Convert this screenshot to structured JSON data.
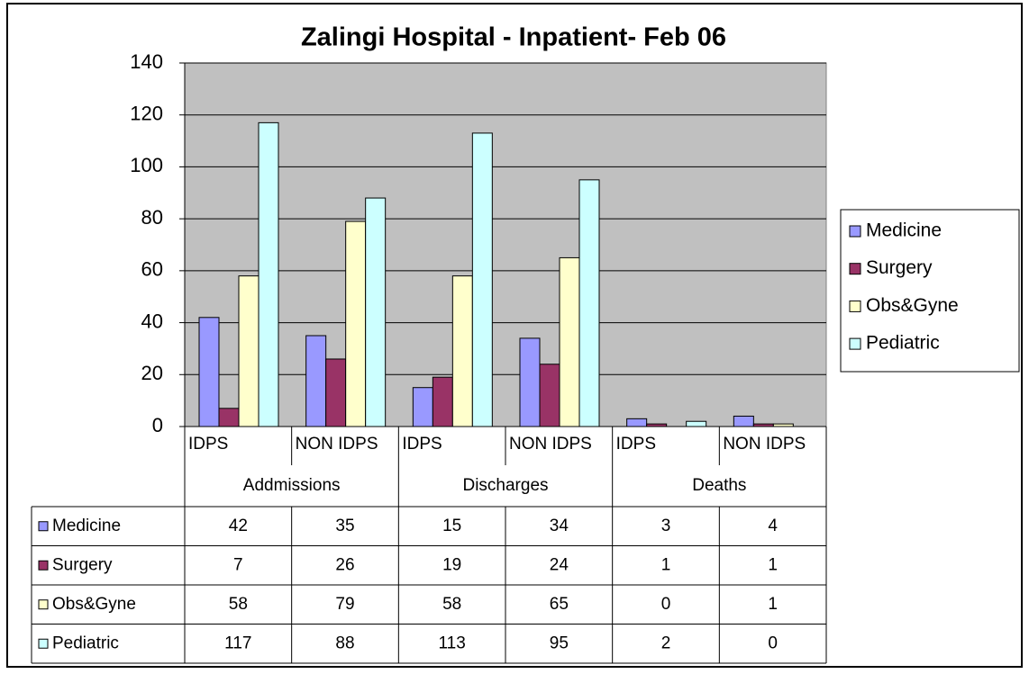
{
  "chart_data": {
    "type": "bar",
    "title": "Zalingi Hospital - Inpatient- Feb 06",
    "categories": [
      "IDPS",
      "NON IDPS",
      "IDPS",
      "NON IDPS",
      "IDPS",
      "NON IDPS"
    ],
    "groups": [
      "Addmissions",
      "Discharges",
      "Deaths"
    ],
    "series": [
      {
        "name": "Medicine",
        "color": "#9999ff",
        "values": [
          42,
          35,
          15,
          34,
          3,
          4
        ]
      },
      {
        "name": "Surgery",
        "color": "#993366",
        "values": [
          7,
          26,
          19,
          24,
          1,
          1
        ]
      },
      {
        "name": "Obs&Gyne",
        "color": "#ffffcc",
        "values": [
          58,
          79,
          58,
          65,
          0,
          1
        ]
      },
      {
        "name": "Pediatric",
        "color": "#ccffff",
        "values": [
          117,
          88,
          113,
          95,
          2,
          0
        ]
      }
    ],
    "ylim": [
      0,
      140
    ],
    "yticks": [
      0,
      20,
      40,
      60,
      80,
      100,
      120,
      140
    ],
    "grid": true,
    "legend": "right",
    "plot_background": "#c0c0c0"
  }
}
